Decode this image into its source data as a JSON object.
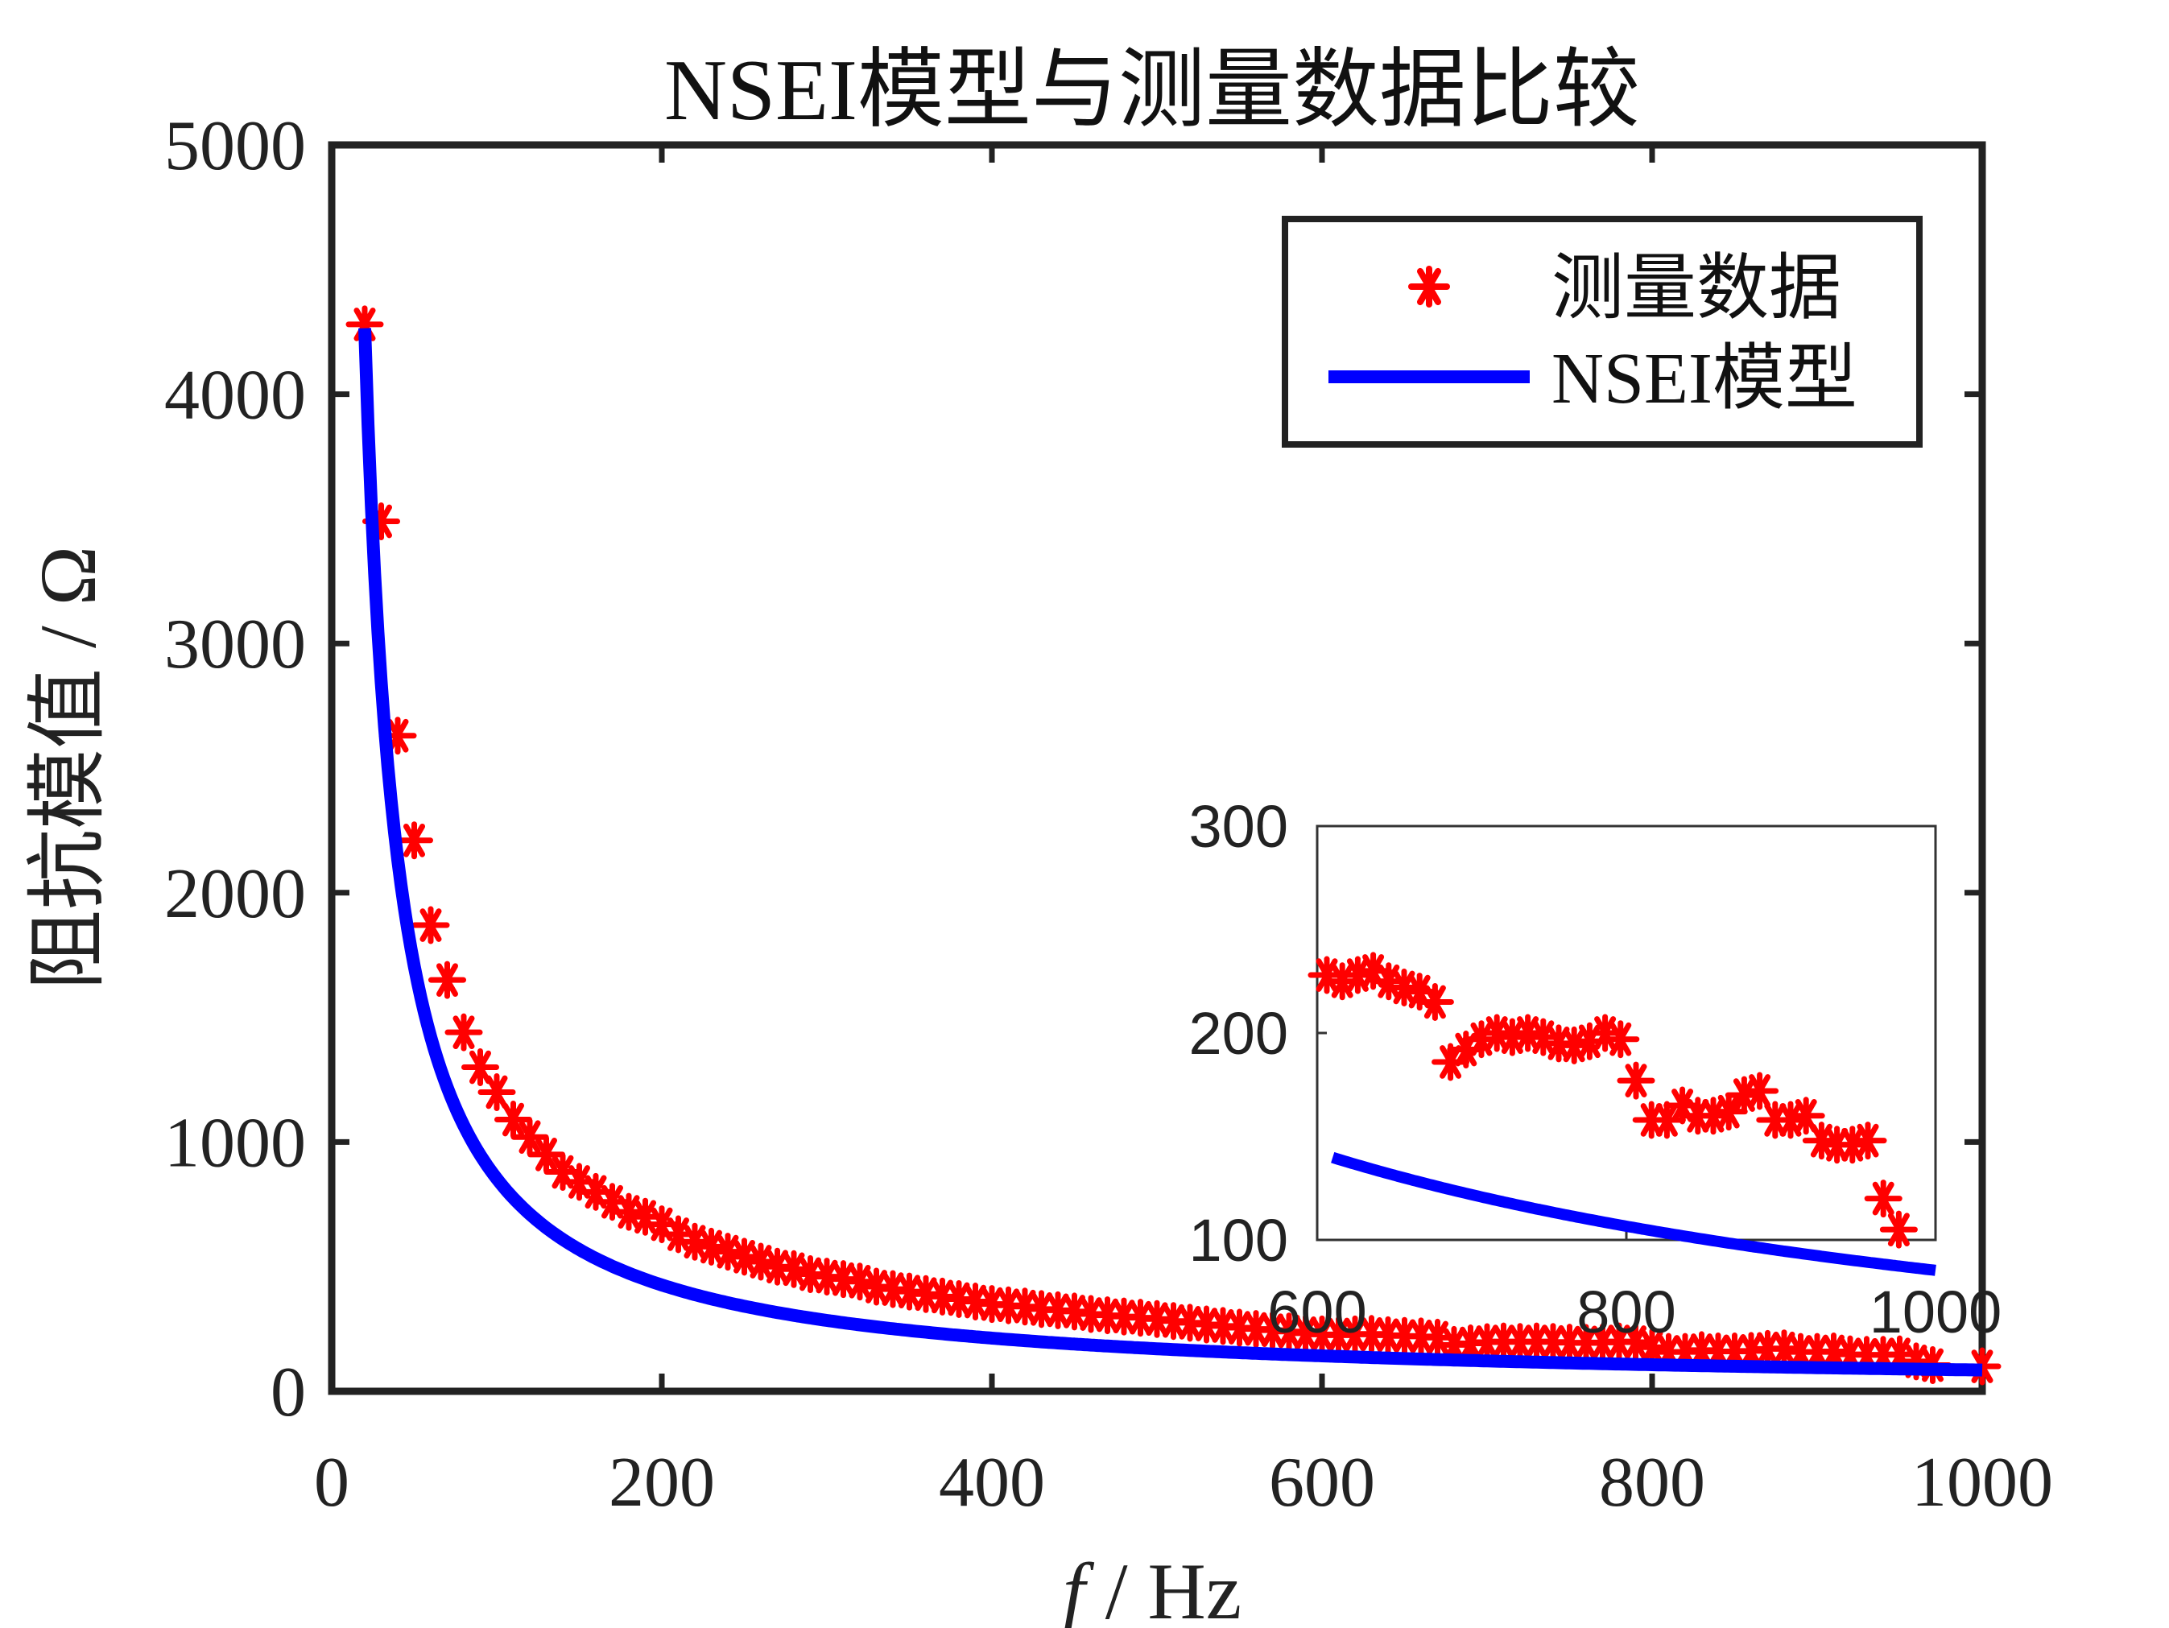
{
  "chart_data": [
    {
      "type": "scatter+line",
      "title": "NSEI模型与测量数据比较",
      "xlabel_italic": "f",
      "xlabel_rest": " / Hz",
      "ylabel": "阻抗模值 / Ω",
      "xlim": [
        0,
        1000
      ],
      "ylim": [
        0,
        5000
      ],
      "xticks": [
        0,
        200,
        400,
        600,
        800,
        1000
      ],
      "yticks": [
        0,
        1000,
        2000,
        3000,
        4000,
        5000
      ],
      "legend_position": "top-right",
      "series": [
        {
          "name": "测量数据",
          "kind": "scatter",
          "marker": "asterisk",
          "color": "#ff0000",
          "points": [
            [
              20,
              4280
            ],
            [
              30,
              3490
            ],
            [
              40,
              2630
            ],
            [
              50,
              2210
            ],
            [
              60,
              1870
            ],
            [
              70,
              1650
            ],
            [
              80,
              1440
            ],
            [
              90,
              1300
            ],
            [
              100,
              1200
            ],
            [
              110,
              1090
            ],
            [
              120,
              1020
            ],
            [
              130,
              950
            ],
            [
              140,
              880
            ],
            [
              150,
              840
            ],
            [
              160,
              800
            ],
            [
              170,
              760
            ],
            [
              180,
              720
            ],
            [
              190,
              700
            ],
            [
              200,
              670
            ],
            [
              210,
              630
            ],
            [
              220,
              600
            ],
            [
              230,
              580
            ],
            [
              240,
              560
            ],
            [
              250,
              540
            ],
            [
              260,
              520
            ],
            [
              270,
              500
            ],
            [
              280,
              490
            ],
            [
              290,
              470
            ],
            [
              300,
              460
            ],
            [
              310,
              450
            ],
            [
              320,
              440
            ],
            [
              330,
              420
            ],
            [
              340,
              410
            ],
            [
              350,
              400
            ],
            [
              360,
              390
            ],
            [
              370,
              380
            ],
            [
              380,
              370
            ],
            [
              390,
              360
            ],
            [
              400,
              350
            ],
            [
              410,
              345
            ],
            [
              420,
              340
            ],
            [
              430,
              330
            ],
            [
              440,
              325
            ],
            [
              450,
              320
            ],
            [
              460,
              310
            ],
            [
              470,
              305
            ],
            [
              480,
              300
            ],
            [
              490,
              295
            ],
            [
              500,
              290
            ],
            [
              510,
              282
            ],
            [
              520,
              275
            ],
            [
              530,
              268
            ],
            [
              540,
              262
            ],
            [
              550,
              255
            ],
            [
              560,
              250
            ],
            [
              570,
              245
            ],
            [
              580,
              240
            ],
            [
              590,
              233
            ],
            [
              600,
              228
            ],
            [
              610,
              225
            ],
            [
              620,
              228
            ],
            [
              630,
              230
            ],
            [
              640,
              225
            ],
            [
              650,
              222
            ],
            [
              660,
              220
            ],
            [
              670,
              215
            ],
            [
              680,
              186
            ],
            [
              690,
              192
            ],
            [
              700,
              197
            ],
            [
              710,
              200
            ],
            [
              720,
              198
            ],
            [
              730,
              200
            ],
            [
              740,
              198
            ],
            [
              750,
              195
            ],
            [
              760,
              194
            ],
            [
              770,
              196
            ],
            [
              780,
              200
            ],
            [
              790,
              197
            ],
            [
              800,
              177
            ],
            [
              810,
              158
            ],
            [
              820,
              158
            ],
            [
              830,
              165
            ],
            [
              840,
              160
            ],
            [
              850,
              160
            ],
            [
              860,
              162
            ],
            [
              870,
              170
            ],
            [
              880,
              172
            ],
            [
              890,
              158
            ],
            [
              900,
              158
            ],
            [
              910,
              160
            ],
            [
              920,
              148
            ],
            [
              930,
              146
            ],
            [
              940,
              146
            ],
            [
              950,
              148
            ],
            [
              960,
              120
            ],
            [
              970,
              105
            ],
            [
              1000,
              100
            ]
          ]
        },
        {
          "name": "NSEI模型",
          "kind": "line",
          "color": "#0000ff",
          "model": "y = 85300 * x^-1.0",
          "x_range": [
            20,
            1000
          ]
        }
      ]
    },
    {
      "type": "scatter+line",
      "role": "inset",
      "xlim": [
        600,
        1000
      ],
      "ylim": [
        100,
        300
      ],
      "xticks": [
        600,
        800,
        1000
      ],
      "yticks": [
        100,
        200,
        300
      ],
      "series_ref": [
        "测量数据",
        "NSEI模型"
      ]
    }
  ]
}
